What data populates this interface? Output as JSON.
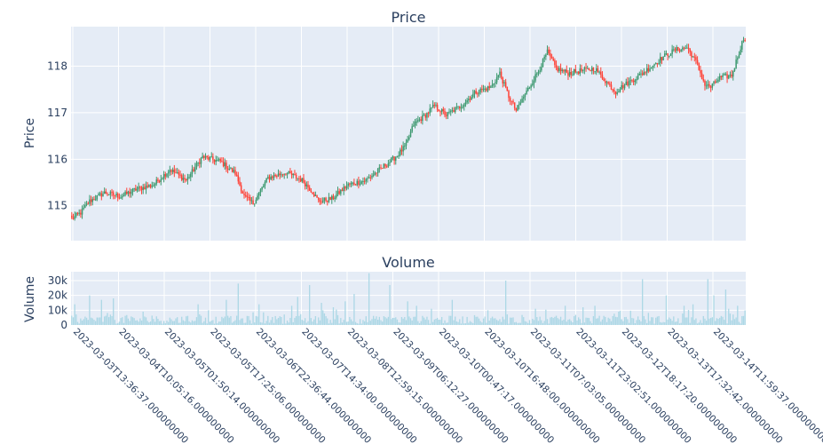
{
  "chart_data": [
    {
      "type": "candlestick",
      "title": "Price",
      "ylabel": "Price",
      "ylim": [
        114.25,
        118.85
      ],
      "yticks": [
        "115",
        "116",
        "117",
        "118"
      ],
      "ytick_values": [
        115,
        116,
        117,
        118
      ],
      "up_color": "#3d9970",
      "down_color": "#ff4136",
      "close_anchor_points": [
        [
          0,
          114.72
        ],
        [
          6,
          114.85
        ],
        [
          12,
          115.1
        ],
        [
          22,
          115.28
        ],
        [
          33,
          115.2
        ],
        [
          43,
          115.35
        ],
        [
          55,
          115.45
        ],
        [
          66,
          115.78
        ],
        [
          77,
          115.55
        ],
        [
          88,
          116.05
        ],
        [
          100,
          115.95
        ],
        [
          110,
          115.7
        ],
        [
          116,
          115.2
        ],
        [
          122,
          115.05
        ],
        [
          132,
          115.6
        ],
        [
          144,
          115.72
        ],
        [
          155,
          115.55
        ],
        [
          162,
          115.3
        ],
        [
          166,
          115.1
        ],
        [
          175,
          115.15
        ],
        [
          186,
          115.45
        ],
        [
          198,
          115.55
        ],
        [
          210,
          115.85
        ],
        [
          218,
          116.05
        ],
        [
          225,
          116.3
        ],
        [
          230,
          116.75
        ],
        [
          238,
          116.95
        ],
        [
          244,
          117.15
        ],
        [
          252,
          116.95
        ],
        [
          262,
          117.15
        ],
        [
          272,
          117.45
        ],
        [
          282,
          117.55
        ],
        [
          288,
          117.85
        ],
        [
          294,
          117.35
        ],
        [
          299,
          117.05
        ],
        [
          306,
          117.45
        ],
        [
          314,
          117.9
        ],
        [
          320,
          118.3
        ],
        [
          326,
          117.95
        ],
        [
          334,
          117.85
        ],
        [
          342,
          117.9
        ],
        [
          352,
          117.95
        ],
        [
          360,
          117.65
        ],
        [
          366,
          117.45
        ],
        [
          372,
          117.6
        ],
        [
          382,
          117.8
        ],
        [
          390,
          118.0
        ],
        [
          398,
          118.2
        ],
        [
          406,
          118.35
        ],
        [
          414,
          118.4
        ],
        [
          420,
          118.1
        ],
        [
          426,
          117.6
        ],
        [
          430,
          117.55
        ],
        [
          436,
          117.75
        ],
        [
          444,
          117.8
        ],
        [
          449,
          118.3
        ],
        [
          452,
          118.6
        ]
      ],
      "volume_range": [
        500,
        35000
      ]
    },
    {
      "type": "bar",
      "title": "Volume",
      "ylabel": "Volume",
      "ylim": [
        0,
        36000
      ],
      "yticks": [
        "0",
        "10k",
        "20k",
        "30k"
      ],
      "ytick_values": [
        0,
        10000,
        20000,
        30000
      ],
      "bar_color": "#add8e6",
      "x_range": [
        "2023-03-03T13:36:37.000000000",
        "2023-03-14T18:30:00.000000000"
      ],
      "xticks": [
        "2023-03-03T13:36:37.000000000",
        "2023-03-04T10:05:16.000000000",
        "2023-03-05T01:50:14.000000000",
        "2023-03-05T17:25:06.000000000",
        "2023-03-06T22:36:44.000000000",
        "2023-03-07T14:34:00.000000000",
        "2023-03-08T12:59:15.000000000",
        "2023-03-09T06:12:27.000000000",
        "2023-03-10T00:47:17.000000000",
        "2023-03-10T16:48:00.000000000",
        "2023-03-11T07:03:05.000000000",
        "2023-03-11T23:02:51.000000000",
        "2023-03-12T18:17:20.000000000",
        "2023-03-13T17:32:42.000000000",
        "2023-03-14T11:59:37.000000000"
      ],
      "tall_spikes": [
        [
          2,
          14000
        ],
        [
          12,
          20000
        ],
        [
          20,
          17000
        ],
        [
          28,
          18000
        ],
        [
          48,
          9000
        ],
        [
          85,
          14000
        ],
        [
          92,
          10000
        ],
        [
          104,
          17000
        ],
        [
          112,
          28000
        ],
        [
          126,
          14000
        ],
        [
          148,
          13000
        ],
        [
          152,
          19000
        ],
        [
          160,
          27000
        ],
        [
          168,
          15000
        ],
        [
          176,
          12000
        ],
        [
          184,
          16000
        ],
        [
          190,
          21000
        ],
        [
          200,
          35000
        ],
        [
          214,
          27000
        ],
        [
          226,
          16000
        ],
        [
          232,
          13000
        ],
        [
          242,
          11000
        ],
        [
          256,
          17000
        ],
        [
          280,
          10000
        ],
        [
          292,
          30000
        ],
        [
          312,
          11000
        ],
        [
          332,
          13000
        ],
        [
          344,
          12000
        ],
        [
          352,
          13000
        ],
        [
          368,
          9000
        ],
        [
          384,
          31000
        ],
        [
          400,
          20000
        ],
        [
          412,
          13000
        ],
        [
          418,
          14000
        ],
        [
          428,
          31000
        ],
        [
          432,
          20000
        ],
        [
          442,
          11000
        ],
        [
          448,
          13000
        ],
        [
          440,
          24000
        ]
      ]
    }
  ]
}
